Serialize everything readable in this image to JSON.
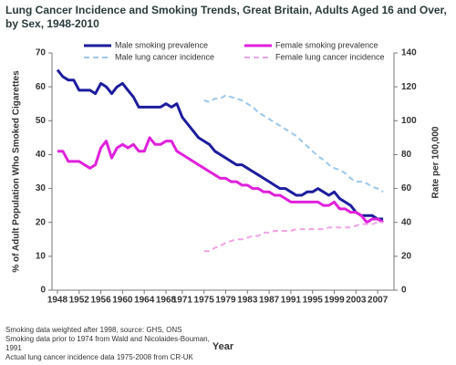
{
  "chart_data": {
    "type": "line",
    "title": "Lung Cancer Incidence and Smoking Trends, Great Britain, Adults Aged 16 and Over, by Sex, 1948-2010",
    "x_label": "Year",
    "y_label": "% of Adult Population Who Smoked Cigarettes",
    "y2_label": "Rate per 100,000",
    "notes": [
      "Smoking data weighted after 1998, source: GHS, ONS",
      "Smoking data prior to 1974 from Wald  and Nicolaides-Bouman, 1991",
      "Actual lung cancer incidence data 1975-2008 from CR-UK"
    ],
    "x": [
      1948,
      1949,
      1950,
      1951,
      1952,
      1953,
      1954,
      1955,
      1956,
      1957,
      1958,
      1959,
      1960,
      1961,
      1962,
      1963,
      1964,
      1965,
      1966,
      1967,
      1968,
      1969,
      1970,
      1971,
      1972,
      1973,
      1974,
      1975,
      1976,
      1977,
      1978,
      1979,
      1980,
      1981,
      1982,
      1983,
      1984,
      1985,
      1986,
      1987,
      1988,
      1989,
      1990,
      1991,
      1992,
      1993,
      1994,
      1995,
      1996,
      1997,
      1998,
      1999,
      2000,
      2001,
      2002,
      2003,
      2004,
      2005,
      2006,
      2007,
      2008
    ],
    "xlim": [
      1947,
      2010
    ],
    "xticks": [
      1948,
      1952,
      1956,
      1960,
      1964,
      1968,
      1971,
      1975,
      1979,
      1983,
      1987,
      1991,
      1995,
      1999,
      2003,
      2007
    ],
    "ylim": [
      0,
      70
    ],
    "yticks": [
      0,
      10,
      20,
      30,
      40,
      50,
      60,
      70
    ],
    "y2lim": [
      0,
      140
    ],
    "y2ticks": [
      0,
      20,
      40,
      60,
      80,
      100,
      120,
      140
    ],
    "grid": false,
    "series": [
      {
        "name": "Male smoking prevalence",
        "color": "#1c1c9e",
        "dashed": false,
        "values": [
          65,
          63,
          62,
          62,
          59,
          59,
          59,
          58,
          61,
          60,
          58,
          60,
          61,
          59,
          57,
          54,
          54,
          54,
          54,
          54,
          55,
          54,
          55,
          51,
          49,
          47,
          45,
          44,
          43,
          41,
          40,
          39,
          38,
          37,
          37,
          36,
          35,
          34,
          33,
          32,
          31,
          30,
          30,
          29,
          28,
          28,
          29,
          29,
          30,
          29,
          28,
          29,
          27,
          26,
          25,
          23,
          22,
          22,
          22,
          21,
          21
        ]
      },
      {
        "name": "Female smoking prevalence",
        "color": "#e020dc",
        "dashed": false,
        "values": [
          41,
          41,
          38,
          38,
          38,
          37,
          36,
          37,
          42,
          44,
          39,
          42,
          43,
          42,
          43,
          41,
          41,
          45,
          43,
          43,
          44,
          44,
          41,
          40,
          39,
          38,
          37,
          36,
          35,
          34,
          33,
          33,
          32,
          32,
          31,
          31,
          30,
          30,
          29,
          29,
          28,
          28,
          27,
          26,
          26,
          26,
          26,
          26,
          26,
          25,
          25,
          26,
          24,
          24,
          23,
          23,
          22,
          20,
          21,
          21,
          20
        ]
      },
      {
        "name": "Male lung cancer incidence",
        "color": "#9cc8ec",
        "dashed": true,
        "axis": "y2",
        "values": [
          null,
          null,
          null,
          null,
          null,
          null,
          null,
          null,
          null,
          null,
          null,
          null,
          null,
          null,
          null,
          null,
          null,
          null,
          null,
          null,
          null,
          null,
          null,
          null,
          null,
          null,
          null,
          112,
          111,
          113,
          113,
          115,
          114,
          113,
          112,
          110,
          108,
          105,
          103,
          101,
          99,
          97,
          95,
          93,
          91,
          88,
          85,
          82,
          79,
          77,
          74,
          72,
          71,
          69,
          66,
          64,
          64,
          63,
          61,
          60,
          58
        ]
      },
      {
        "name": "Female lung cancer incidence",
        "color": "#f0a4e4",
        "dashed": true,
        "axis": "y2",
        "values": [
          null,
          null,
          null,
          null,
          null,
          null,
          null,
          null,
          null,
          null,
          null,
          null,
          null,
          null,
          null,
          null,
          null,
          null,
          null,
          null,
          null,
          null,
          null,
          null,
          null,
          null,
          null,
          23,
          23,
          25,
          26,
          28,
          29,
          30,
          30,
          31,
          32,
          32,
          34,
          34,
          35,
          35,
          35,
          35,
          36,
          36,
          36,
          36,
          36,
          36,
          37,
          37,
          37,
          37,
          37,
          38,
          39,
          39,
          39,
          40,
          40
        ]
      }
    ]
  }
}
